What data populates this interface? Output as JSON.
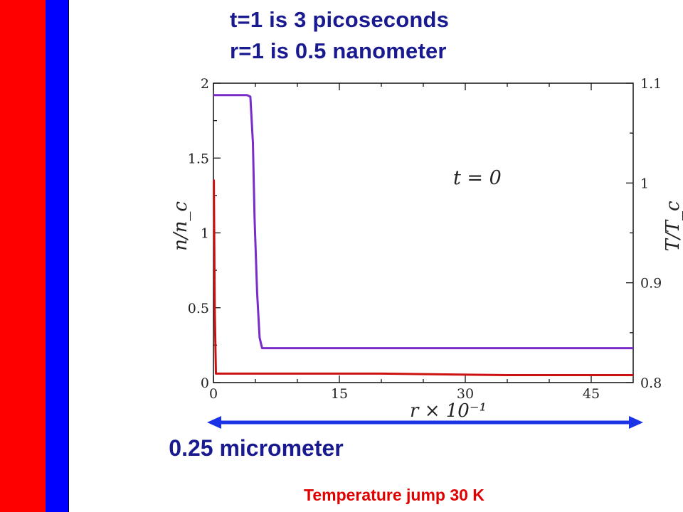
{
  "colors": {
    "left_bar": "#ff0000",
    "right_bar": "#0000ff",
    "density_curve": "#7a2cc8",
    "temperature_curve": "#cc1111",
    "arrow": "#1a33e6"
  },
  "header": {
    "line1": "t=1 is 3 picoseconds",
    "line2": "r=1 is 0.5 nanometer"
  },
  "scale": {
    "label": "0.25 micrometer"
  },
  "footnote": "Temperature jump 30 K",
  "chart_data": {
    "type": "line",
    "annotation": "t = 0",
    "xlabel": "r × 10⁻¹",
    "ylabel_left": "n/n_c",
    "ylabel_right": "T/T_c",
    "xlim": [
      0,
      50
    ],
    "ylim_left": [
      0,
      2
    ],
    "ylim_right": [
      0.8,
      1.1
    ],
    "x_ticks": [
      0,
      15,
      30,
      45
    ],
    "y_ticks_left": [
      0,
      0.5,
      1,
      1.5,
      2
    ],
    "y_ticks_right": [
      0.8,
      0.9,
      1,
      1.1
    ],
    "y_tick_labels_left": [
      "0",
      "0.5",
      "1",
      "1.5",
      "2"
    ],
    "y_tick_labels_right": [
      "0.8",
      "0.9",
      "1",
      "1.1"
    ],
    "grid": false,
    "series": [
      {
        "axis": "left",
        "x": [
          0,
          4.0,
          4.4,
          4.7,
          4.9,
          5.2,
          5.5,
          5.8,
          6.0,
          10,
          20,
          30,
          40,
          50
        ],
        "values": [
          1.92,
          1.92,
          1.91,
          1.6,
          1.1,
          0.6,
          0.3,
          0.23,
          0.23,
          0.23,
          0.23,
          0.23,
          0.23,
          0.23
        ]
      },
      {
        "axis": "left",
        "x": [
          0,
          0.05,
          0.15,
          0.3,
          5,
          20,
          35,
          50
        ],
        "values": [
          1.35,
          1.35,
          0.5,
          0.06,
          0.06,
          0.06,
          0.05,
          0.05
        ]
      }
    ]
  }
}
